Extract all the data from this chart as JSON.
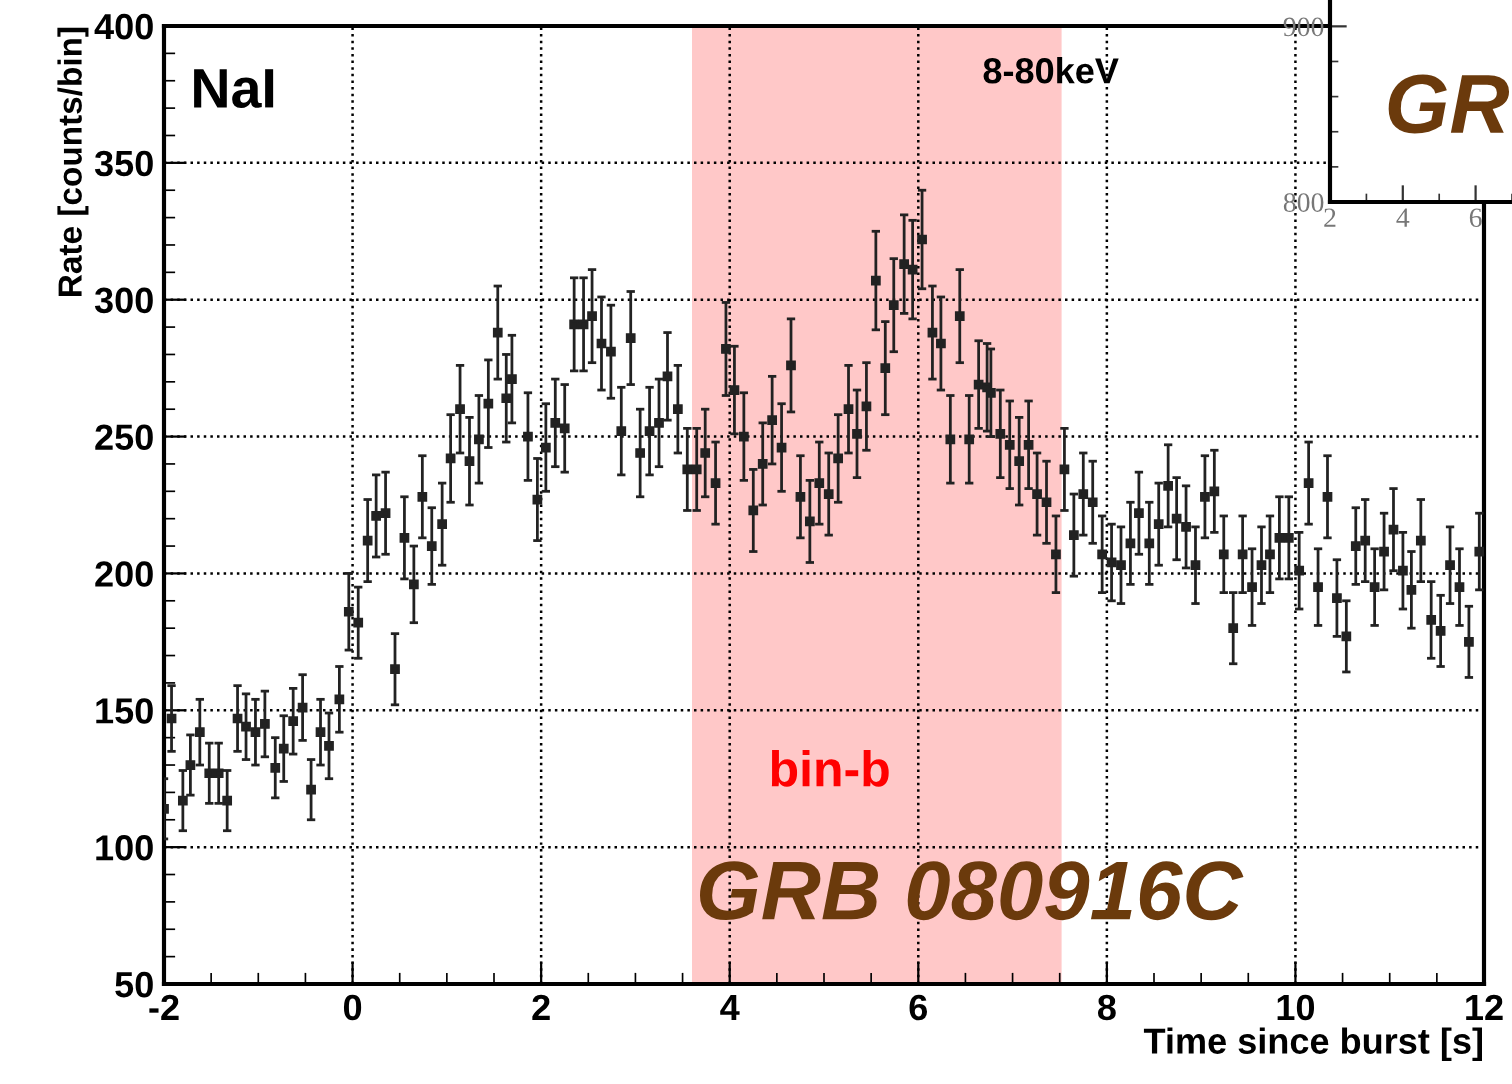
{
  "chart_data": [
    {
      "type": "scatter",
      "xlabel": "Time since burst [s]",
      "ylabel": "Rate [counts/bin]",
      "xlim": [
        -2,
        12
      ],
      "ylim": [
        50,
        400
      ],
      "xticks": [
        -2,
        0,
        2,
        4,
        6,
        8,
        10,
        12
      ],
      "yticks": [
        50,
        100,
        150,
        200,
        250,
        300,
        350,
        400
      ],
      "grid": true,
      "marker": "square",
      "bands": [
        {
          "axis": "x",
          "from": 3.6,
          "to": 7.52,
          "label": "bin-b",
          "color": "#ffc8c8"
        }
      ],
      "annotations": [
        "NaI",
        "8-80keV",
        "GRB 080916C"
      ],
      "series": [
        {
          "color": "#222222",
          "x": [
            -2.0,
            -1.92,
            -1.8,
            -1.72,
            -1.62,
            -1.52,
            -1.42,
            -1.33,
            -1.22,
            -1.13,
            -1.03,
            -0.93,
            -0.82,
            -0.73,
            -0.63,
            -0.53,
            -0.44,
            -0.34,
            -0.25,
            -0.14,
            -0.04,
            0.06,
            0.16,
            0.25,
            0.35,
            0.45,
            0.55,
            0.65,
            0.74,
            0.84,
            0.95,
            1.04,
            1.14,
            1.24,
            1.34,
            1.44,
            1.54,
            1.63,
            1.69,
            1.86,
            1.96,
            2.05,
            2.15,
            2.25,
            2.35,
            2.45,
            2.54,
            2.64,
            2.74,
            2.85,
            2.95,
            3.05,
            3.15,
            3.25,
            3.34,
            3.45,
            3.55,
            3.65,
            3.74,
            3.85,
            3.96,
            4.05,
            4.15,
            4.25,
            4.35,
            4.45,
            4.55,
            4.65,
            4.75,
            4.85,
            4.95,
            5.05,
            5.15,
            5.26,
            5.35,
            5.45,
            5.55,
            5.65,
            5.74,
            5.85,
            5.94,
            6.04,
            6.15,
            6.24,
            6.34,
            6.44,
            6.54,
            6.64,
            6.73,
            6.77,
            6.87,
            6.97,
            7.07,
            7.17,
            7.26,
            7.36,
            7.46,
            7.55,
            7.65,
            7.75,
            7.85,
            7.95,
            8.05,
            8.15,
            8.25,
            8.34,
            8.45,
            8.55,
            8.65,
            8.74,
            8.84,
            8.94,
            9.04,
            9.14,
            9.24,
            9.34,
            9.44,
            9.54,
            9.64,
            9.73,
            9.83,
            9.93,
            10.04,
            10.14,
            10.24,
            10.34,
            10.44,
            10.54,
            10.64,
            10.74,
            10.84,
            10.94,
            11.04,
            11.14,
            11.23,
            11.33,
            11.44,
            11.54,
            11.64,
            11.74,
            11.84,
            11.95
          ],
          "values": [
            114,
            147,
            117,
            130,
            142,
            127,
            127,
            117,
            147,
            144,
            142,
            145,
            129,
            136,
            146,
            151,
            121,
            142,
            137,
            154,
            186,
            182,
            212,
            221,
            222,
            165,
            213,
            196,
            228,
            210,
            218,
            242,
            260,
            241,
            249,
            262,
            288,
            264,
            271,
            250,
            227,
            246,
            255,
            253,
            291,
            291,
            294,
            284,
            281,
            252,
            286,
            244,
            252,
            255,
            272,
            260,
            238,
            238,
            244,
            233,
            282,
            267,
            250,
            223,
            240,
            256,
            246,
            276,
            228,
            219,
            233,
            229,
            242,
            260,
            251,
            261,
            307,
            275,
            298,
            313,
            311,
            322,
            288,
            284,
            249,
            294,
            249,
            269,
            268,
            266,
            251,
            247,
            241,
            247,
            229,
            226,
            207,
            238,
            214,
            229,
            226,
            207,
            204,
            203,
            211,
            222,
            211,
            218,
            232,
            220,
            217,
            203,
            228,
            230,
            207,
            180,
            207,
            195,
            203,
            207,
            213,
            213,
            201,
            233,
            195,
            228,
            191,
            177,
            210,
            212,
            195,
            208,
            216,
            201,
            194,
            212,
            183,
            179,
            203,
            195,
            175,
            208
          ],
          "errors": [
            11,
            12,
            11,
            11,
            12,
            11,
            11,
            11,
            12,
            12,
            12,
            12,
            11,
            12,
            12,
            12,
            11,
            12,
            12,
            12,
            14,
            13,
            15,
            15,
            15,
            13,
            15,
            14,
            15,
            14,
            15,
            16,
            16,
            16,
            16,
            16,
            17,
            16,
            16,
            16,
            15,
            16,
            16,
            16,
            17,
            17,
            17,
            17,
            17,
            16,
            17,
            16,
            16,
            16,
            16,
            16,
            15,
            15,
            16,
            15,
            17,
            16,
            16,
            15,
            15,
            16,
            16,
            17,
            15,
            15,
            15,
            15,
            16,
            16,
            16,
            16,
            18,
            17,
            17,
            18,
            18,
            18,
            17,
            17,
            16,
            17,
            16,
            16,
            16,
            16,
            16,
            16,
            16,
            16,
            15,
            15,
            14,
            15,
            15,
            15,
            15,
            14,
            14,
            14,
            15,
            15,
            15,
            15,
            15,
            15,
            15,
            14,
            15,
            15,
            14,
            13,
            14,
            14,
            14,
            14,
            15,
            15,
            14,
            15,
            14,
            15,
            14,
            13,
            14,
            15,
            14,
            14,
            15,
            14,
            14,
            15,
            14,
            13,
            14,
            14,
            13,
            14
          ],
          "xerrors": [
            0.03,
            0.03,
            0.03,
            0.03,
            0.03,
            0.03,
            0.03,
            0.03,
            0.03,
            0.03,
            0.03,
            0.03,
            0.03,
            0.03,
            0.03,
            0.03,
            0.03,
            0.03,
            0.03,
            0.03,
            0.03,
            0.03,
            0.03,
            0.03,
            0.03,
            0.03,
            0.03,
            0.03,
            0.03,
            0.03,
            0.03,
            0.03,
            0.03,
            0.03,
            0.03,
            0.03,
            0.03,
            0.03,
            0.03,
            0.03,
            0.03,
            0.03,
            0.03,
            0.03,
            0.03,
            0.03,
            0.03,
            0.03,
            0.03,
            0.03,
            0.03,
            0.03,
            0.03,
            0.03,
            0.03,
            0.03,
            0.03,
            0.03,
            0.03,
            0.03,
            0.03,
            0.03,
            0.03,
            0.03,
            0.03,
            0.03,
            0.03,
            0.03,
            0.03,
            0.03,
            0.03,
            0.03,
            0.03,
            0.03,
            0.03,
            0.03,
            0.03,
            0.03,
            0.03,
            0.03,
            0.03,
            0.03,
            0.03,
            0.03,
            0.03,
            0.03,
            0.03,
            0.03,
            0.03,
            0.03,
            0.03,
            0.03,
            0.03,
            0.03,
            0.03,
            0.03,
            0.03,
            0.03,
            0.03,
            0.03,
            0.03,
            0.03,
            0.03,
            0.03,
            0.03,
            0.03,
            0.03,
            0.03,
            0.03,
            0.03,
            0.03,
            0.03,
            0.03,
            0.03,
            0.03,
            0.03,
            0.03,
            0.03,
            0.03,
            0.03,
            0.03,
            0.03,
            0.03,
            0.03,
            0.03,
            0.03,
            0.03,
            0.03,
            0.03,
            0.03,
            0.03,
            0.03,
            0.03,
            0.03,
            0.03,
            0.03,
            0.03,
            0.03,
            0.03,
            0.03,
            0.03,
            0.03
          ]
        }
      ]
    },
    {
      "type": "line",
      "xlim": [
        2,
        7
      ],
      "ylim": [
        800,
        915
      ],
      "xticks": [
        2,
        4,
        6
      ],
      "yticks": [
        800,
        900
      ],
      "annotations": [
        "GR"
      ]
    }
  ]
}
